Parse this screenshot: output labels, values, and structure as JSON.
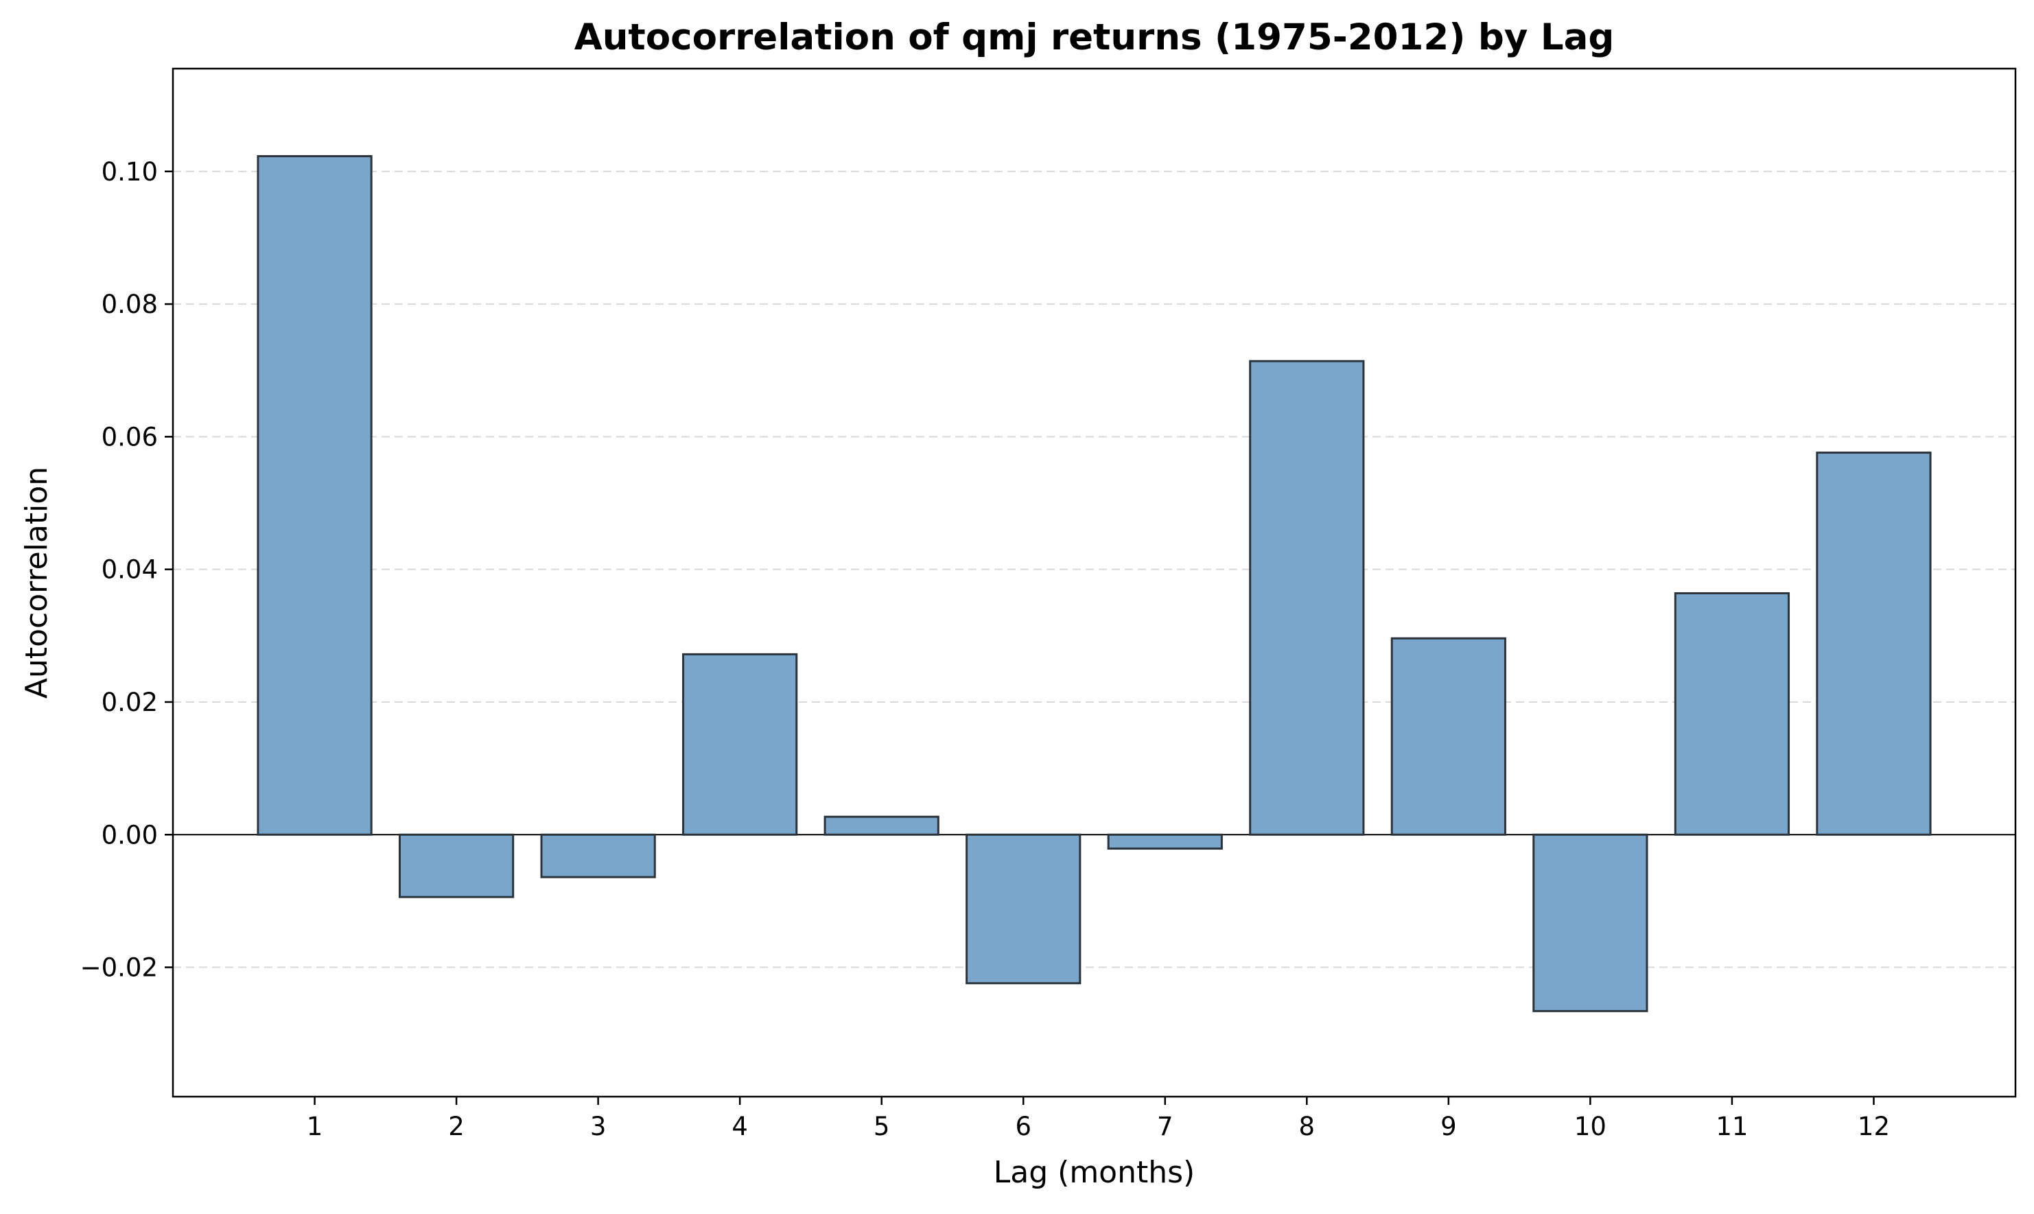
{
  "chart_data": {
    "type": "bar",
    "title": "Autocorrelation of qmj returns (1975-2012) by Lag",
    "xlabel": "Lag (months)",
    "ylabel": "Autocorrelation",
    "categories": [
      "1",
      "2",
      "3",
      "4",
      "5",
      "6",
      "7",
      "8",
      "9",
      "10",
      "11",
      "12"
    ],
    "values": [
      0.1023,
      -0.0094,
      -0.0064,
      0.0272,
      0.0027,
      -0.0224,
      -0.0021,
      0.0714,
      0.0296,
      -0.0266,
      0.0364,
      0.0576
    ],
    "ylim": [
      -0.0395,
      0.1155
    ],
    "yticks": [
      -0.02,
      0.0,
      0.02,
      0.04,
      0.06,
      0.08,
      0.1
    ],
    "ytick_labels": [
      "−0.02",
      "0.00",
      "0.02",
      "0.04",
      "0.06",
      "0.08",
      "0.10"
    ],
    "grid": "y-dashed",
    "colors": {
      "bar_fill": "#7ba6cb",
      "bar_edge": "#2b333b",
      "zero_line": "#000000",
      "grid": "#d9d9d9"
    }
  }
}
